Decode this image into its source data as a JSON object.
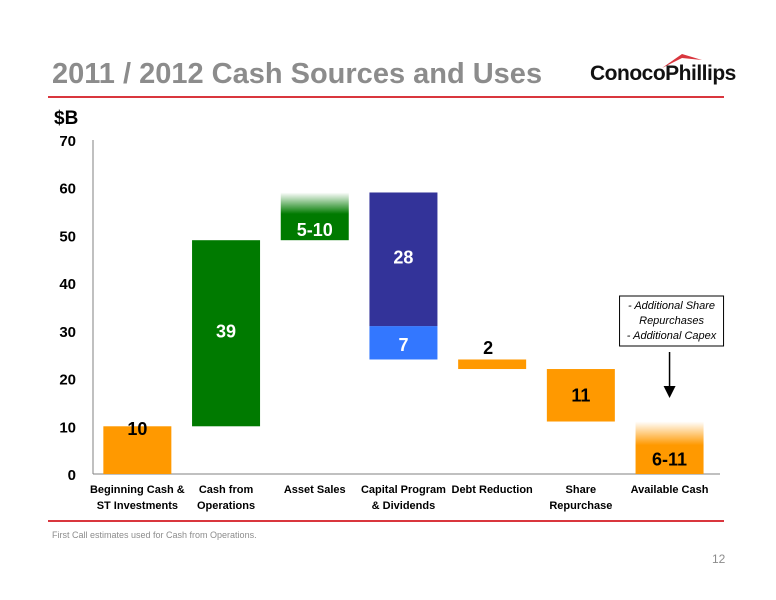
{
  "page": {
    "title": "2011 / 2012 Cash Sources and Uses",
    "logo_text": "ConocoPhillips",
    "footnote": "First Call estimates used for Cash from Operations.",
    "page_number": "12"
  },
  "colors": {
    "orange": "#ff9900",
    "green": "#007a00",
    "navy": "#333399",
    "blue": "#3377ff",
    "red_rule": "#d9363e",
    "title_gray": "#8c8c8c"
  },
  "chart_data": {
    "type": "bar",
    "subtype": "waterfall",
    "ylabel": "$B",
    "ylim": [
      0,
      70
    ],
    "yticks": [
      0,
      10,
      20,
      30,
      40,
      50,
      60,
      70
    ],
    "grid": false,
    "categories": [
      [
        "Beginning Cash &",
        "ST Investments"
      ],
      [
        "Cash from",
        "Operations"
      ],
      [
        "Asset Sales"
      ],
      [
        "Capital Program",
        "& Dividends"
      ],
      [
        "Debt Reduction"
      ],
      [
        "Share",
        "Repurchase"
      ],
      [
        "Available Cash"
      ]
    ],
    "bars": [
      {
        "segments": [
          {
            "from": 0,
            "to": 10,
            "color": "orange",
            "style": "solid",
            "label": "10"
          }
        ]
      },
      {
        "segments": [
          {
            "from": 10,
            "to": 49,
            "color": "green",
            "style": "solid",
            "label": "39"
          }
        ]
      },
      {
        "segments": [
          {
            "from": 49,
            "to": 59,
            "color": "green",
            "style": "fade-top",
            "label": "5-10"
          }
        ]
      },
      {
        "segments": [
          {
            "from": 24,
            "to": 31,
            "color": "blue",
            "style": "solid",
            "label": "7"
          },
          {
            "from": 31,
            "to": 59,
            "color": "navy",
            "style": "solid",
            "label": "28"
          }
        ]
      },
      {
        "segments": [
          {
            "from": 22,
            "to": 24,
            "color": "orange",
            "style": "solid",
            "label": "2"
          }
        ]
      },
      {
        "segments": [
          {
            "from": 11,
            "to": 22,
            "color": "orange",
            "style": "solid",
            "label": "11"
          }
        ]
      },
      {
        "segments": [
          {
            "from": 0,
            "to": 11,
            "color": "orange",
            "style": "fade-top",
            "label": "6-11"
          }
        ]
      }
    ],
    "annotation": {
      "lines": [
        "- Additional Share",
        "Repurchases",
        "- Additional Capex"
      ],
      "arrow_target_category": 6
    }
  }
}
